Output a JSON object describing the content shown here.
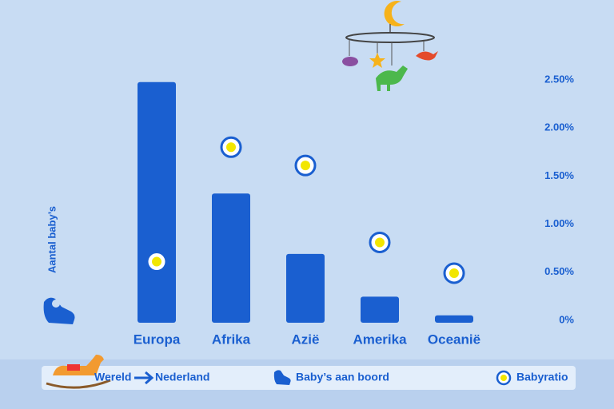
{
  "chart_data": {
    "type": "bar",
    "legend_from": "Wereld",
    "legend_to": "Nederland",
    "ylabel": "Aantal baby’s",
    "categories": [
      "Europa",
      "Afrika",
      "Azië",
      "Amerika",
      "Oceanië"
    ],
    "ylim": [
      0,
      300
    ],
    "y2lim": [
      0,
      2.5
    ],
    "y2ticks": [
      {
        "value": 0,
        "label": "0%"
      },
      {
        "value": 0.5,
        "label": "0.50%"
      },
      {
        "value": 1,
        "label": "1.00%"
      },
      {
        "value": 1.5,
        "label": "1.50%"
      },
      {
        "value": 2,
        "label": "2.00%"
      },
      {
        "value": 2.5,
        "label": "2.50%"
      }
    ],
    "series": [
      {
        "name": "Baby’s aan boord",
        "color": "#1a5fd0",
        "values": [
          259,
          139,
          74,
          28,
          8
        ]
      },
      {
        "name": "Babyratio",
        "type": "scatter",
        "axis": "y2",
        "color": "#f2e600",
        "values": [
          0.61,
          1.8,
          1.61,
          0.81,
          0.49
        ]
      }
    ]
  }
}
